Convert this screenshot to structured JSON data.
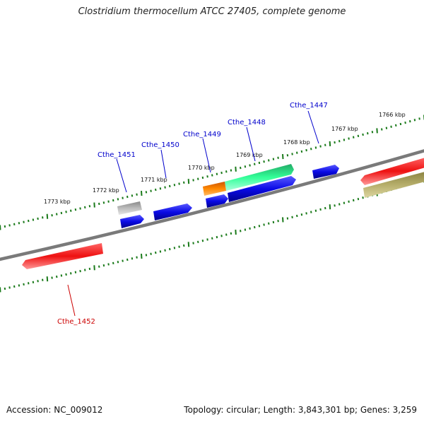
{
  "title": "Clostridium thermocellum ATCC 27405, complete genome",
  "footer": {
    "accession_label": "Accession:",
    "accession": "NC_009012",
    "topology_label": "Topology:",
    "topology": "circular",
    "length_label": "Length:",
    "length": "3,843,301 bp",
    "genes_label": "Genes:",
    "genes": "3,259"
  },
  "scale_labels": [
    "1766 kbp",
    "1767 kbp",
    "1768 kbp",
    "1769 kbp",
    "1770 kbp",
    "1771 kbp",
    "1772 kbp",
    "1773 kbp"
  ],
  "gene_labels": [
    {
      "id": "Cthe_1447",
      "color": "#0000cc"
    },
    {
      "id": "Cthe_1448",
      "color": "#0000cc"
    },
    {
      "id": "Cthe_1449",
      "color": "#0000cc"
    },
    {
      "id": "Cthe_1450",
      "color": "#0000cc"
    },
    {
      "id": "Cthe_1451",
      "color": "#0000cc"
    },
    {
      "id": "Cthe_1452",
      "color": "#cc0000"
    }
  ],
  "colors": {
    "backbone": "#7a7a7a",
    "tick": "#1a7a1a",
    "blue_gene": "#0a0ae6",
    "red_gene": "#ee1111",
    "green_gene": "#22ee99",
    "orange_gene": "#ff8800",
    "gray_gene": "#bbbbbb",
    "olive_gene": "#b5ad6a"
  }
}
